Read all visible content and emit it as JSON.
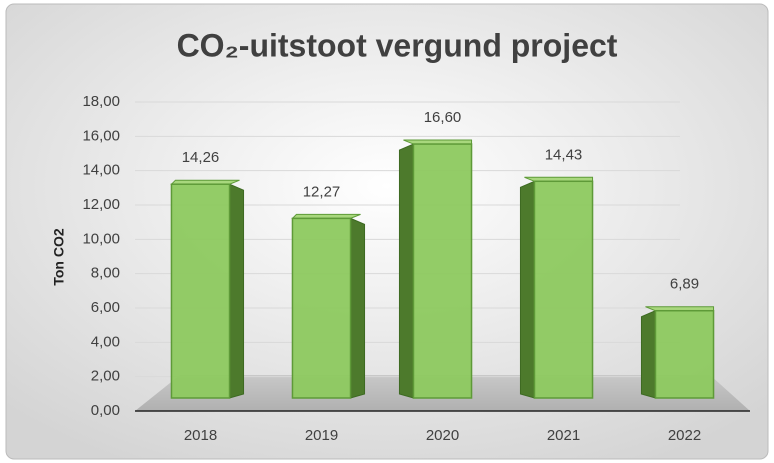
{
  "chart_data": {
    "type": "bar3d",
    "title": "CO₂-uitstoot vergund project",
    "y_label": "Ton CO2",
    "categories": [
      "2018",
      "2019",
      "2020",
      "2021",
      "2022"
    ],
    "values": [
      14.26,
      12.27,
      16.6,
      14.43,
      6.89
    ],
    "value_labels": [
      "14,26",
      "12,27",
      "16,60",
      "14,43",
      "6,89"
    ],
    "color": "#8dc95f",
    "ylim": [
      0,
      18
    ],
    "yticks": [
      {
        "value": 0,
        "label": "0,00"
      },
      {
        "value": 2,
        "label": "2,00"
      },
      {
        "value": 4,
        "label": "4,00"
      },
      {
        "value": 6,
        "label": "6,00"
      },
      {
        "value": 8,
        "label": "8,00"
      },
      {
        "value": 10,
        "label": "10,00"
      },
      {
        "value": 12,
        "label": "12,00"
      },
      {
        "value": 14,
        "label": "14,00"
      },
      {
        "value": 16,
        "label": "16,00"
      },
      {
        "value": 18,
        "label": "18,00"
      }
    ],
    "grid": true
  }
}
